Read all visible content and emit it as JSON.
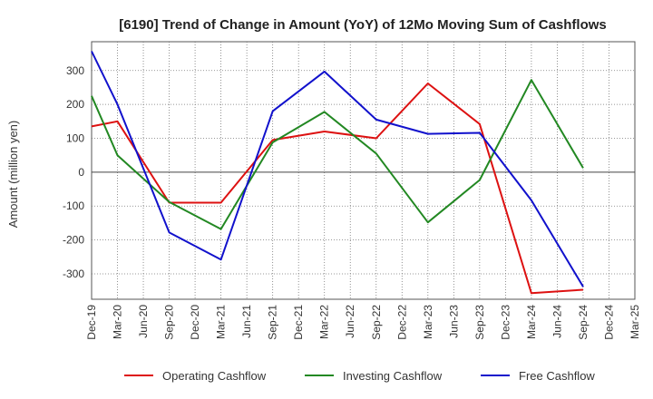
{
  "chart_data": {
    "type": "line",
    "title": "[6190]  Trend of Change in Amount (YoY) of 12Mo Moving Sum of Cashflows",
    "xlabel": "",
    "ylabel": "Amount (million yen)",
    "ylim": [
      -375,
      385
    ],
    "yticks": [
      -300,
      -200,
      -100,
      0,
      100,
      200,
      300
    ],
    "categories": [
      "Dec-19",
      "Mar-20",
      "Jun-20",
      "Sep-20",
      "Dec-20",
      "Mar-21",
      "Jun-21",
      "Sep-21",
      "Dec-21",
      "Mar-22",
      "Jun-22",
      "Sep-22",
      "Dec-22",
      "Mar-23",
      "Jun-23",
      "Sep-23",
      "Dec-23",
      "Mar-24",
      "Jun-24",
      "Sep-24",
      "Dec-24",
      "Mar-25"
    ],
    "series": [
      {
        "name": "Operating Cashflow",
        "color": "#dd1111",
        "values": [
          135,
          150,
          null,
          -90,
          null,
          -90,
          null,
          95,
          null,
          120,
          null,
          100,
          null,
          262,
          null,
          142,
          null,
          -357,
          null,
          -347,
          null,
          null
        ]
      },
      {
        "name": "Investing Cashflow",
        "color": "#228822",
        "values": [
          225,
          50,
          null,
          -88,
          null,
          -168,
          null,
          88,
          null,
          178,
          null,
          55,
          null,
          -148,
          null,
          -23,
          null,
          272,
          null,
          12,
          null,
          null
        ]
      },
      {
        "name": "Free Cashflow",
        "color": "#1111cc",
        "values": [
          357,
          200,
          null,
          -178,
          null,
          -258,
          null,
          180,
          null,
          297,
          null,
          155,
          null,
          113,
          null,
          116,
          null,
          -83,
          null,
          -338,
          null,
          null
        ]
      }
    ],
    "grid": true,
    "legend_position": "bottom"
  }
}
